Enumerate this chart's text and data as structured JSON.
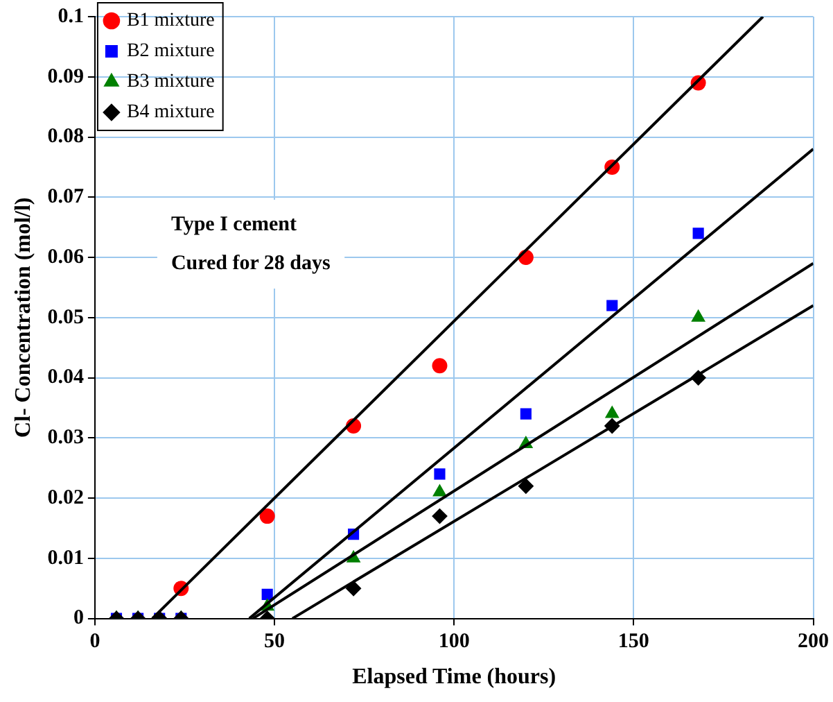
{
  "chart_data": {
    "type": "scatter",
    "xlabel": "Elapsed Time (hours)",
    "ylabel": "Cl- Concentration (mol/l)",
    "x": [
      6,
      12,
      18,
      24,
      48,
      72,
      96,
      120,
      144,
      168
    ],
    "series": [
      {
        "name": "B1 mixture",
        "color": "#ff0000",
        "marker": "circle",
        "values": [
          null,
          null,
          null,
          0.005,
          0.017,
          0.032,
          0.042,
          0.06,
          0.075,
          0.089
        ]
      },
      {
        "name": "B2 mixture",
        "color": "#0000ff",
        "marker": "square",
        "values": [
          0,
          0,
          0,
          0,
          0.004,
          0.014,
          0.024,
          0.034,
          0.052,
          0.064
        ]
      },
      {
        "name": "B3 mixture",
        "color": "#008000",
        "marker": "triangle",
        "values": [
          0,
          0,
          0,
          0,
          0.002,
          0.01,
          0.021,
          0.029,
          0.034,
          0.05
        ]
      },
      {
        "name": "B4 mixture",
        "color": "#000000",
        "marker": "diamond",
        "values": [
          0,
          0,
          0,
          0,
          0,
          0.005,
          0.017,
          0.022,
          0.032,
          0.04
        ]
      },
      {
        "type": "line",
        "color": "#000000",
        "x": [
          16,
          186
        ],
        "values": [
          0,
          0.1
        ]
      },
      {
        "type": "line",
        "color": "#000000",
        "x": [
          43,
          200
        ],
        "values": [
          0,
          0.078
        ]
      },
      {
        "type": "line",
        "color": "#000000",
        "x": [
          44,
          200
        ],
        "values": [
          0,
          0.059
        ]
      },
      {
        "type": "line",
        "color": "#000000",
        "x": [
          55,
          200
        ],
        "values": [
          0,
          0.052
        ]
      }
    ],
    "xlim": [
      0,
      200
    ],
    "xticks": [
      0,
      50,
      100,
      150,
      200
    ],
    "ylim": [
      0,
      0.1
    ],
    "yticks": [
      0,
      0.01,
      0.02,
      0.03,
      0.04,
      0.05,
      0.06,
      0.07,
      0.08,
      0.09,
      0.1
    ],
    "annotations": [
      "Type I cement",
      "Cured for 28 days"
    ],
    "grid": true,
    "legend": "top left"
  }
}
